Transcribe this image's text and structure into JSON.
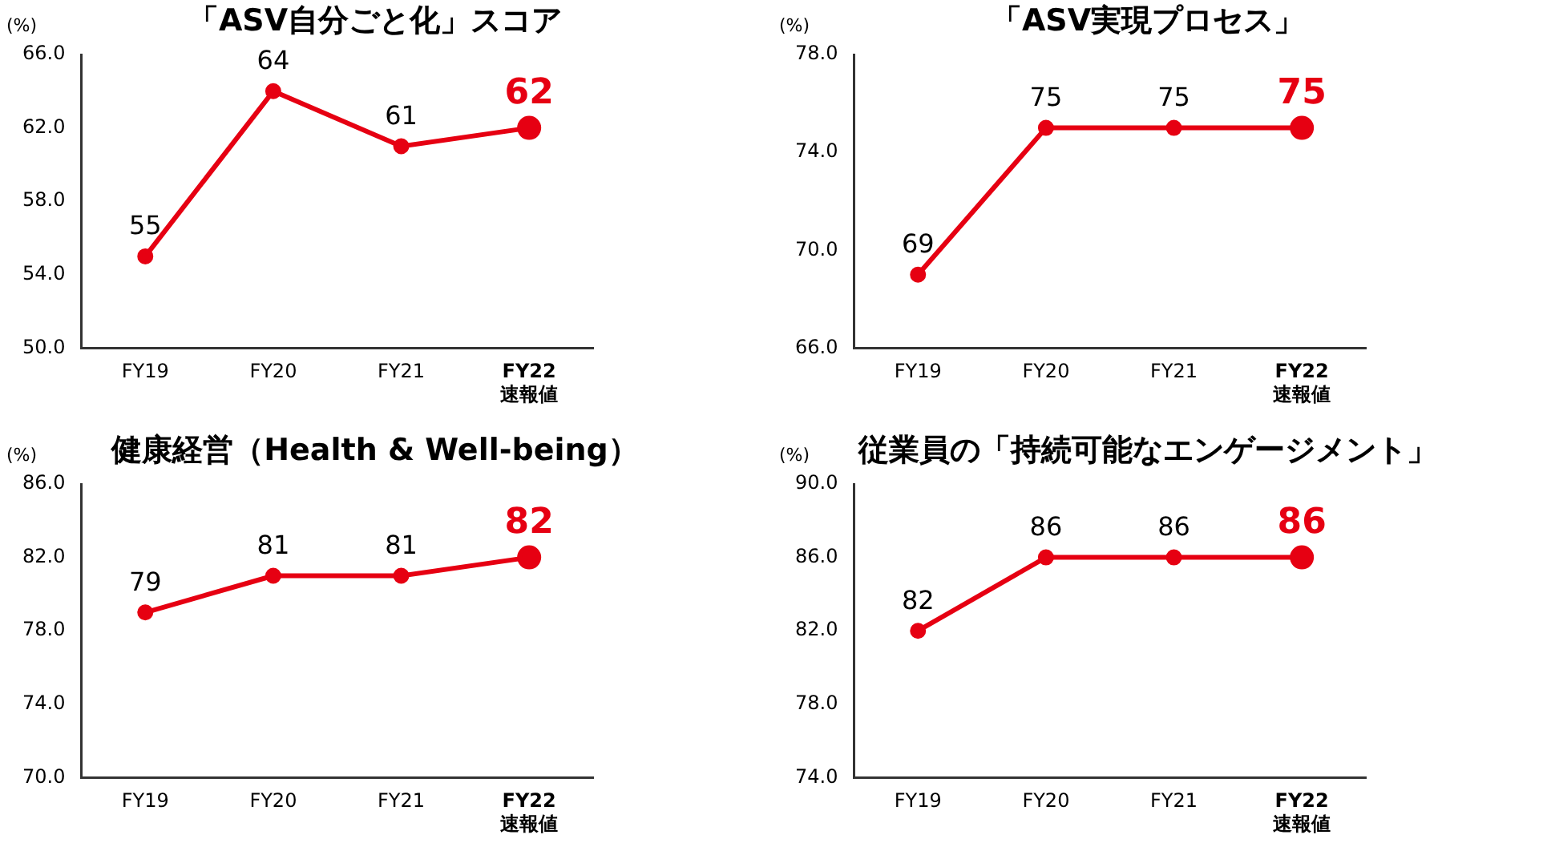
{
  "chart_data": [
    {
      "type": "line",
      "title": "「ASV自分ごと化」スコア",
      "ylabel": "(%)",
      "categories": [
        "FY19",
        "FY20",
        "FY21",
        "FY22\n速報値"
      ],
      "values": [
        55,
        64,
        61,
        62
      ],
      "color": "#e60012",
      "ylim": [
        50,
        66
      ],
      "yticks": [
        {
          "value": 50,
          "label": "50.0"
        },
        {
          "value": 54,
          "label": "54.0"
        },
        {
          "value": 58,
          "label": "58.0"
        },
        {
          "value": 62,
          "label": "62.0"
        },
        {
          "value": 66,
          "label": "66.0"
        }
      ],
      "grid": false,
      "legend": false,
      "marker": "circle",
      "data_labels": true
    },
    {
      "type": "line",
      "title": "「ASV実現プロセス」",
      "ylabel": "(%)",
      "categories": [
        "FY19",
        "FY20",
        "FY21",
        "FY22\n速報値"
      ],
      "values": [
        69,
        75,
        75,
        75
      ],
      "color": "#e60012",
      "ylim": [
        66,
        78
      ],
      "yticks": [
        {
          "value": 66,
          "label": "66.0"
        },
        {
          "value": 70,
          "label": "70.0"
        },
        {
          "value": 74,
          "label": "74.0"
        },
        {
          "value": 78,
          "label": "78.0"
        }
      ],
      "grid": false,
      "legend": false,
      "marker": "circle",
      "data_labels": true
    },
    {
      "type": "line",
      "title": "健康経営（Health & Well-being）",
      "ylabel": "(%)",
      "categories": [
        "FY19",
        "FY20",
        "FY21",
        "FY22\n速報値"
      ],
      "values": [
        79,
        81,
        81,
        82
      ],
      "color": "#e60012",
      "ylim": [
        70,
        86
      ],
      "yticks": [
        {
          "value": 70,
          "label": "70.0"
        },
        {
          "value": 74,
          "label": "74.0"
        },
        {
          "value": 78,
          "label": "78.0"
        },
        {
          "value": 82,
          "label": "82.0"
        },
        {
          "value": 86,
          "label": "86.0"
        }
      ],
      "grid": false,
      "legend": false,
      "marker": "circle",
      "data_labels": true
    },
    {
      "type": "line",
      "title": "従業員の「持続可能なエンゲージメント」",
      "ylabel": "(%)",
      "categories": [
        "FY19",
        "FY20",
        "FY21",
        "FY22\n速報値"
      ],
      "values": [
        82,
        86,
        86,
        86
      ],
      "color": "#e60012",
      "ylim": [
        74,
        90
      ],
      "yticks": [
        {
          "value": 74,
          "label": "74.0"
        },
        {
          "value": 78,
          "label": "78.0"
        },
        {
          "value": 82,
          "label": "82.0"
        },
        {
          "value": 86,
          "label": "86.0"
        },
        {
          "value": 90,
          "label": "90.0"
        }
      ],
      "grid": false,
      "legend": false,
      "marker": "circle",
      "data_labels": true
    }
  ]
}
